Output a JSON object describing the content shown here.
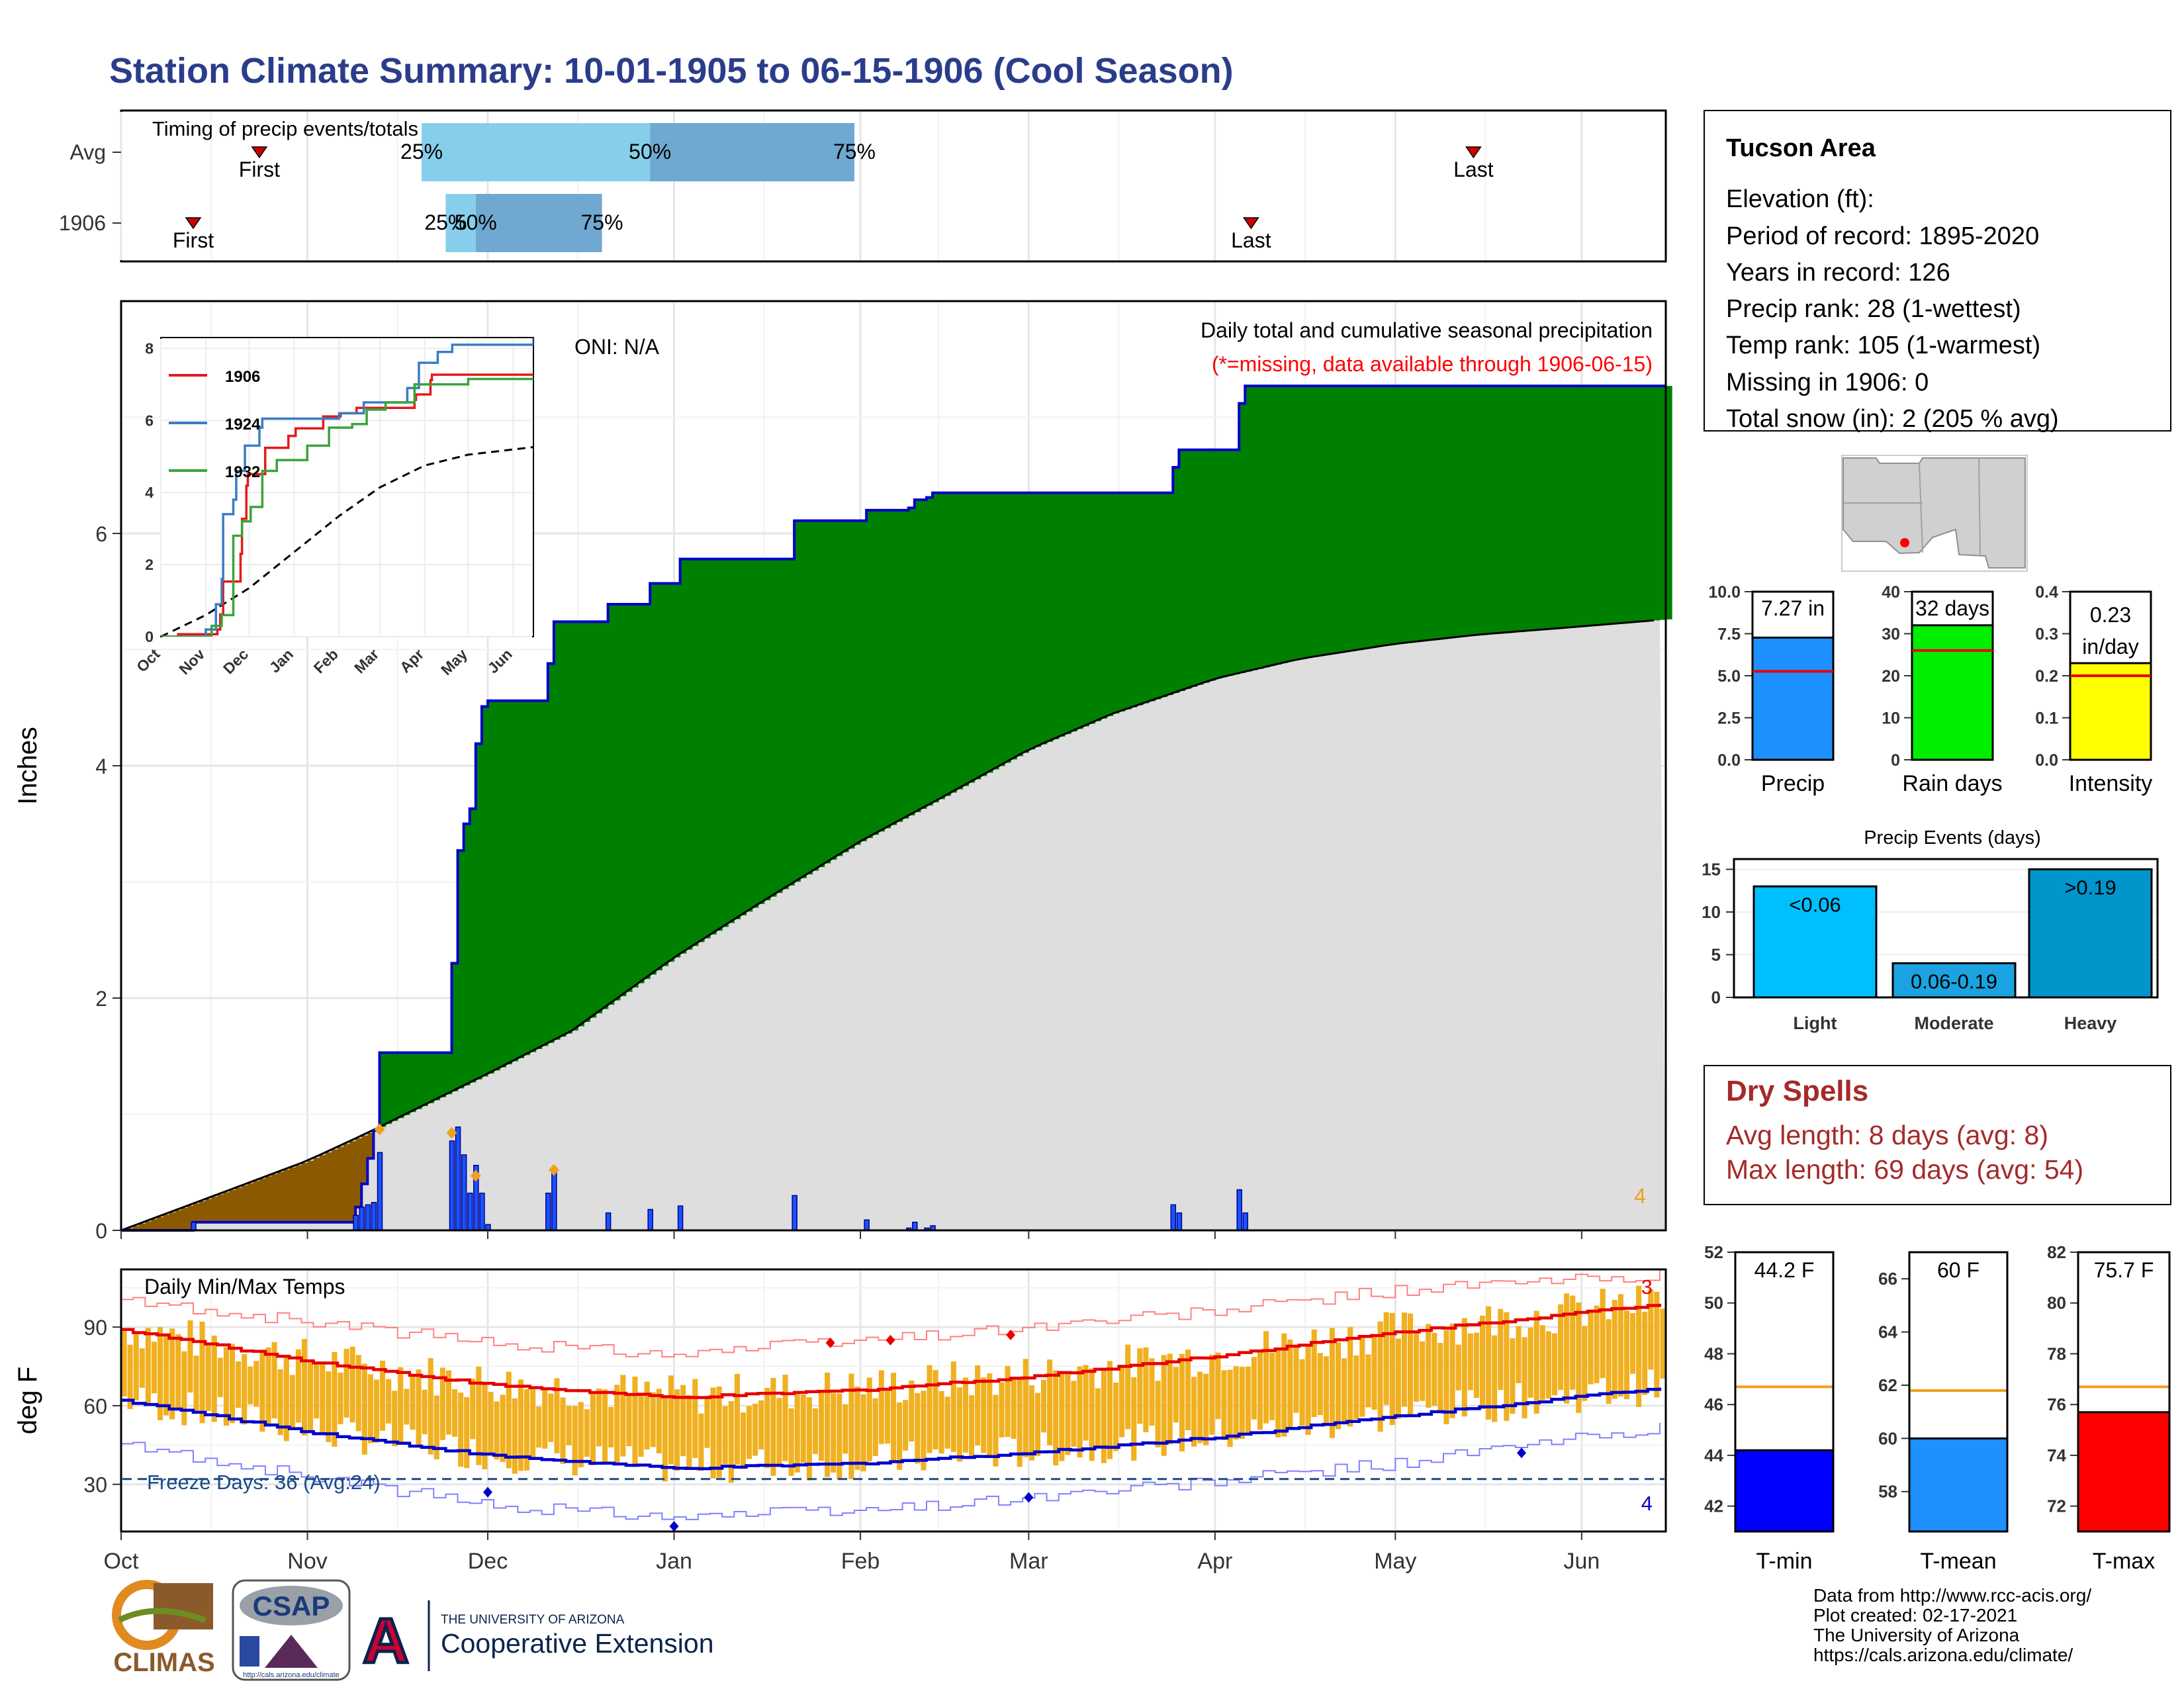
{
  "title": "Station Climate Summary: 10-01-1905 to 06-15-1906 (Cool Season)",
  "months": [
    "Oct",
    "Nov",
    "Dec",
    "Jan",
    "Feb",
    "Mar",
    "Apr",
    "May",
    "Jun"
  ],
  "timing": {
    "title": "Timing of precip events/totals",
    "row_labels": [
      "Avg",
      "1906"
    ],
    "pct_labels": [
      "25%",
      "50%",
      "75%"
    ],
    "first_label": "First",
    "last_label": "Last",
    "avg": {
      "first": "1905-10-24",
      "last": "1906-05-14",
      "p25": "1905-11-20",
      "p50": "1905-12-28",
      "p75": "1906-01-31"
    },
    "y1906": {
      "first": "1905-10-13",
      "last": "1906-04-07",
      "p25": "1905-11-24",
      "p50": "1905-11-29",
      "p75": "1905-12-20"
    },
    "colors": {
      "light": "#87ceeb",
      "dark": "#6fa8d0",
      "marker": "#cc0000"
    }
  },
  "precip": {
    "ylabel": "Inches",
    "heading": "Daily total and cumulative seasonal precipitation",
    "missing_note": "(*=missing, data available through 1906-06-15)",
    "oni": "ONI: N/A",
    "missing_count": "4",
    "yticks": [
      0,
      2,
      4,
      6
    ],
    "ylim": [
      0,
      8
    ],
    "cumulative_1906": [
      [
        "1905-10-01",
        0.0
      ],
      [
        "1905-10-13",
        0.07
      ],
      [
        "1905-11-08",
        0.07
      ],
      [
        "1905-11-09",
        0.2
      ],
      [
        "1905-11-10",
        0.4
      ],
      [
        "1905-11-11",
        0.62
      ],
      [
        "1905-11-12",
        0.86
      ],
      [
        "1905-11-13",
        1.53
      ],
      [
        "1905-11-24",
        1.53
      ],
      [
        "1905-11-25",
        2.3
      ],
      [
        "1905-11-26",
        3.27
      ],
      [
        "1905-11-27",
        3.5
      ],
      [
        "1905-11-28",
        3.63
      ],
      [
        "1905-11-29",
        4.19
      ],
      [
        "1905-11-30",
        4.51
      ],
      [
        "1905-12-01",
        4.56
      ],
      [
        "1905-12-10",
        4.56
      ],
      [
        "1905-12-11",
        4.88
      ],
      [
        "1905-12-12",
        5.24
      ],
      [
        "1905-12-20",
        5.24
      ],
      [
        "1905-12-21",
        5.39
      ],
      [
        "1905-12-27",
        5.39
      ],
      [
        "1905-12-28",
        5.57
      ],
      [
        "1906-01-01",
        5.57
      ],
      [
        "1906-01-02",
        5.78
      ],
      [
        "1906-01-20",
        5.78
      ],
      [
        "1906-01-21",
        6.11
      ],
      [
        "1906-02-01",
        6.11
      ],
      [
        "1906-02-02",
        6.2
      ],
      [
        "1906-02-08",
        6.2
      ],
      [
        "1906-02-09",
        6.22
      ],
      [
        "1906-02-10",
        6.29
      ],
      [
        "1906-02-12",
        6.31
      ],
      [
        "1906-02-13",
        6.35
      ],
      [
        "1906-03-24",
        6.35
      ],
      [
        "1906-03-25",
        6.57
      ],
      [
        "1906-03-26",
        6.72
      ],
      [
        "1906-04-04",
        6.72
      ],
      [
        "1906-04-05",
        7.12
      ],
      [
        "1906-04-06",
        7.27
      ],
      [
        "1906-06-15",
        7.27
      ]
    ],
    "average_cumulative": [
      [
        "1905-10-01",
        0.0
      ],
      [
        "1905-10-15",
        0.27
      ],
      [
        "1905-11-01",
        0.6
      ],
      [
        "1905-11-11",
        0.84
      ],
      [
        "1905-12-01",
        1.35
      ],
      [
        "1905-12-15",
        1.72
      ],
      [
        "1906-01-01",
        2.35
      ],
      [
        "1906-01-15",
        2.81
      ],
      [
        "1906-02-01",
        3.35
      ],
      [
        "1906-02-15",
        3.74
      ],
      [
        "1906-03-01",
        4.14
      ],
      [
        "1906-03-15",
        4.45
      ],
      [
        "1906-04-01",
        4.75
      ],
      [
        "1906-04-15",
        4.92
      ],
      [
        "1906-05-01",
        5.05
      ],
      [
        "1906-05-15",
        5.13
      ],
      [
        "1906-06-01",
        5.2
      ],
      [
        "1906-06-15",
        5.26
      ]
    ],
    "daily_bars": [
      [
        "1905-10-13",
        0.07
      ],
      [
        "1905-11-09",
        0.13
      ],
      [
        "1905-11-10",
        0.2
      ],
      [
        "1905-11-11",
        0.22
      ],
      [
        "1905-11-12",
        0.24
      ],
      [
        "1905-11-13",
        0.67
      ],
      [
        "1905-11-25",
        0.77
      ],
      [
        "1905-11-26",
        0.89
      ],
      [
        "1905-11-27",
        0.65
      ],
      [
        "1905-11-28",
        0.32
      ],
      [
        "1905-11-29",
        0.56
      ],
      [
        "1905-11-30",
        0.32
      ],
      [
        "1905-12-01",
        0.05
      ],
      [
        "1905-12-11",
        0.32
      ],
      [
        "1905-12-12",
        0.5
      ],
      [
        "1905-12-21",
        0.15
      ],
      [
        "1905-12-28",
        0.18
      ],
      [
        "1906-01-02",
        0.21
      ],
      [
        "1906-01-21",
        0.3
      ],
      [
        "1906-02-02",
        0.09
      ],
      [
        "1906-02-09",
        0.02
      ],
      [
        "1906-02-10",
        0.07
      ],
      [
        "1906-02-12",
        0.02
      ],
      [
        "1906-02-13",
        0.04
      ],
      [
        "1906-03-25",
        0.22
      ],
      [
        "1906-03-26",
        0.15
      ],
      [
        "1906-04-05",
        0.35
      ],
      [
        "1906-04-06",
        0.15
      ]
    ],
    "record_marks": [
      [
        "1905-11-13",
        0.87
      ],
      [
        "1905-11-25",
        0.84
      ],
      [
        "1905-11-29",
        0.47
      ],
      [
        "1905-12-12",
        0.52
      ]
    ],
    "colors": {
      "above": "#008000",
      "below": "#8b5a00",
      "avg_area": "#dedede",
      "line": "#0000cc",
      "bar": "#1a53ff",
      "mark": "#f0a020"
    }
  },
  "inset": {
    "yticks": [
      0,
      2,
      4,
      6,
      8
    ],
    "series": [
      {
        "name": "1906",
        "color": "#e31a1c",
        "values": [
          [
            "1905-10-01",
            0
          ],
          [
            "1905-10-13",
            0.07
          ],
          [
            "1905-11-09",
            0.2
          ],
          [
            "1905-11-11",
            0.62
          ],
          [
            "1905-11-13",
            1.53
          ],
          [
            "1905-11-25",
            2.3
          ],
          [
            "1905-11-26",
            3.27
          ],
          [
            "1905-11-29",
            4.19
          ],
          [
            "1905-11-30",
            4.51
          ],
          [
            "1905-12-12",
            5.24
          ],
          [
            "1905-12-28",
            5.57
          ],
          [
            "1906-01-02",
            5.78
          ],
          [
            "1906-01-21",
            6.11
          ],
          [
            "1906-02-02",
            6.2
          ],
          [
            "1906-02-13",
            6.35
          ],
          [
            "1906-03-25",
            6.57
          ],
          [
            "1906-03-26",
            6.72
          ],
          [
            "1906-04-05",
            7.12
          ],
          [
            "1906-04-06",
            7.27
          ],
          [
            "1906-06-15",
            7.27
          ]
        ]
      },
      {
        "name": "1924",
        "color": "#3a7dc4",
        "values": [
          [
            "1905-10-01",
            0
          ],
          [
            "1905-11-01",
            0.2
          ],
          [
            "1905-11-08",
            0.9
          ],
          [
            "1905-11-12",
            1.6
          ],
          [
            "1905-11-13",
            3.4
          ],
          [
            "1905-11-20",
            3.8
          ],
          [
            "1905-11-22",
            4.6
          ],
          [
            "1905-11-28",
            5.3
          ],
          [
            "1905-12-08",
            5.8
          ],
          [
            "1905-12-10",
            6.05
          ],
          [
            "1906-01-10",
            6.05
          ],
          [
            "1906-02-01",
            6.2
          ],
          [
            "1906-02-18",
            6.5
          ],
          [
            "1906-03-10",
            6.5
          ],
          [
            "1906-03-20",
            6.9
          ],
          [
            "1906-03-28",
            7.6
          ],
          [
            "1906-04-10",
            7.9
          ],
          [
            "1906-04-20",
            8.1
          ],
          [
            "1906-06-15",
            8.3
          ]
        ]
      },
      {
        "name": "1932",
        "color": "#3aa33a",
        "values": [
          [
            "1905-10-01",
            0
          ],
          [
            "1905-11-05",
            0.3
          ],
          [
            "1905-11-12",
            0.6
          ],
          [
            "1905-11-20",
            2.8
          ],
          [
            "1905-11-26",
            3.2
          ],
          [
            "1905-12-02",
            3.6
          ],
          [
            "1905-12-10",
            4.6
          ],
          [
            "1905-12-20",
            4.9
          ],
          [
            "1906-01-10",
            5.3
          ],
          [
            "1906-01-25",
            5.8
          ],
          [
            "1906-02-10",
            5.9
          ],
          [
            "1906-02-20",
            6.3
          ],
          [
            "1906-03-05",
            6.5
          ],
          [
            "1906-03-25",
            7.0
          ],
          [
            "1906-04-15",
            7.0
          ],
          [
            "1906-05-01",
            7.15
          ],
          [
            "1906-06-15",
            7.15
          ]
        ]
      }
    ],
    "average": [
      [
        "1905-10-01",
        0.0
      ],
      [
        "1905-11-01",
        0.6
      ],
      [
        "1905-12-01",
        1.35
      ],
      [
        "1906-01-01",
        2.35
      ],
      [
        "1906-02-01",
        3.35
      ],
      [
        "1906-03-01",
        4.14
      ],
      [
        "1906-04-01",
        4.75
      ],
      [
        "1906-05-01",
        5.05
      ],
      [
        "1906-06-15",
        5.26
      ]
    ]
  },
  "temps": {
    "title": "Daily Min/Max Temps",
    "ylabel": "deg F",
    "yticks": [
      30,
      60,
      90
    ],
    "ylim": [
      12,
      112
    ],
    "freeze_label": "Freeze Days: 36 (Avg:24)",
    "freeze_temp": 32,
    "missing_hi": "3",
    "missing_lo": "4",
    "avg_max": [
      [
        "1905-10-01",
        89
      ],
      [
        "1905-11-01",
        77
      ],
      [
        "1905-12-01",
        68
      ],
      [
        "1906-01-01",
        63
      ],
      [
        "1906-02-01",
        66
      ],
      [
        "1906-03-01",
        71
      ],
      [
        "1906-04-01",
        79
      ],
      [
        "1906-05-01",
        88
      ],
      [
        "1906-06-15",
        99
      ]
    ],
    "avg_min": [
      [
        "1905-10-01",
        62
      ],
      [
        "1905-11-01",
        50
      ],
      [
        "1905-12-01",
        41
      ],
      [
        "1906-01-01",
        36
      ],
      [
        "1906-02-01",
        38
      ],
      [
        "1906-03-01",
        42
      ],
      [
        "1906-04-01",
        48
      ],
      [
        "1906-05-01",
        56
      ],
      [
        "1906-06-15",
        67
      ]
    ],
    "record_max": [
      [
        "1905-10-01",
        100
      ],
      [
        "1905-11-01",
        92
      ],
      [
        "1905-12-01",
        84
      ],
      [
        "1906-01-01",
        80
      ],
      [
        "1906-02-01",
        85
      ],
      [
        "1906-03-01",
        90
      ],
      [
        "1906-04-01",
        96
      ],
      [
        "1906-05-01",
        104
      ],
      [
        "1906-06-15",
        110
      ]
    ],
    "record_min": [
      [
        "1905-10-01",
        45
      ],
      [
        "1905-11-01",
        33
      ],
      [
        "1905-12-01",
        22
      ],
      [
        "1906-01-01",
        18
      ],
      [
        "1906-02-01",
        20
      ],
      [
        "1906-03-01",
        25
      ],
      [
        "1906-04-01",
        31
      ],
      [
        "1906-05-01",
        38
      ],
      [
        "1906-06-15",
        52
      ]
    ],
    "max_records": [
      [
        "1906-01-27",
        84
      ],
      [
        "1906-02-06",
        85
      ],
      [
        "1906-02-26",
        87
      ]
    ],
    "min_records": [
      [
        "1905-12-01",
        27
      ],
      [
        "1906-01-01",
        14
      ],
      [
        "1906-03-01",
        25
      ],
      [
        "1906-05-22",
        42
      ]
    ],
    "colors": {
      "bar": "#f0b020",
      "avg_max": "#e60000",
      "avg_min": "#0000cc",
      "rec_max": "#ff8080",
      "rec_min": "#8080ff",
      "freeze": "#1a4a8a"
    }
  },
  "station": {
    "name": "Tucson Area",
    "lines": [
      "Elevation (ft):",
      "Period of record: 1895-2020",
      "Years in record: 126",
      "Precip rank: 28 (1-wettest)",
      "Temp rank: 105 (1-warmest)",
      "Missing in 1906: 0",
      "Total snow (in): 2 (205 % avg)"
    ]
  },
  "summary_bars": [
    {
      "label": "Precip",
      "value": 7.27,
      "value_label": "7.27 in",
      "avg": 5.26,
      "yticks": [
        "0.0",
        "2.5",
        "5.0",
        "7.5",
        "10.0"
      ],
      "ymax": 10.0,
      "color": "#1e90ff"
    },
    {
      "label": "Rain days",
      "value": 32,
      "value_label": "32 days",
      "avg": 26,
      "yticks": [
        "0",
        "10",
        "20",
        "30",
        "40"
      ],
      "ymax": 40,
      "color": "#00ee00"
    },
    {
      "label": "Intensity",
      "value": 0.23,
      "value_label": "0.23 in/day",
      "avg": 0.2,
      "yticks": [
        "0.0",
        "0.1",
        "0.2",
        "0.3",
        "0.4"
      ],
      "ymax": 0.4,
      "color": "#ffff00"
    }
  ],
  "events": {
    "title": "Precip Events (days)",
    "yticks": [
      "0",
      "5",
      "10",
      "15"
    ],
    "ymax": 15.5,
    "bars": [
      {
        "label": "Light",
        "value": 13,
        "tag": "<0.06",
        "color": "#00bfff"
      },
      {
        "label": "Moderate",
        "value": 4,
        "tag": "0.06-0.19",
        "color": "#1aa3e0"
      },
      {
        "label": "Heavy",
        "value": 15,
        "tag": ">0.19",
        "color": "#0096cc"
      }
    ]
  },
  "dry_spells": {
    "title": "Dry Spells",
    "avg": "Avg length: 8 days (avg: 8)",
    "max": "Max length: 69 days (avg: 54)"
  },
  "temp_bars": [
    {
      "label": "T-min",
      "value": 44.2,
      "value_label": "44.2 F",
      "avg": 46.7,
      "yticks": [
        "42",
        "44",
        "46",
        "48",
        "50",
        "52"
      ],
      "ymin": 41,
      "ymax": 52,
      "color": "#0000ff"
    },
    {
      "label": "T-mean",
      "value": 60,
      "value_label": "60 F",
      "avg": 61.8,
      "yticks": [
        "58",
        "60",
        "62",
        "64",
        "66"
      ],
      "ymin": 56.5,
      "ymax": 67,
      "color": "#1e90ff"
    },
    {
      "label": "T-max",
      "value": 75.7,
      "value_label": "75.7 F",
      "avg": 76.7,
      "yticks": [
        "72",
        "74",
        "76",
        "78",
        "80",
        "82"
      ],
      "ymin": 71,
      "ymax": 82,
      "color": "#ff0000"
    }
  ],
  "footer": {
    "credits": [
      "Data from http://www.rcc-acis.org/",
      "Plot created: 02-17-2021",
      "The University of Arizona",
      "https://cals.arizona.edu/climate/"
    ],
    "climas": "CLIMAS",
    "csap": "CSAP",
    "csap_url": "http://cals.arizona.edu/climate",
    "ua_small": "THE UNIVERSITY OF ARIZONA",
    "ua_big": "Cooperative Extension",
    "ua_letter": "A"
  }
}
